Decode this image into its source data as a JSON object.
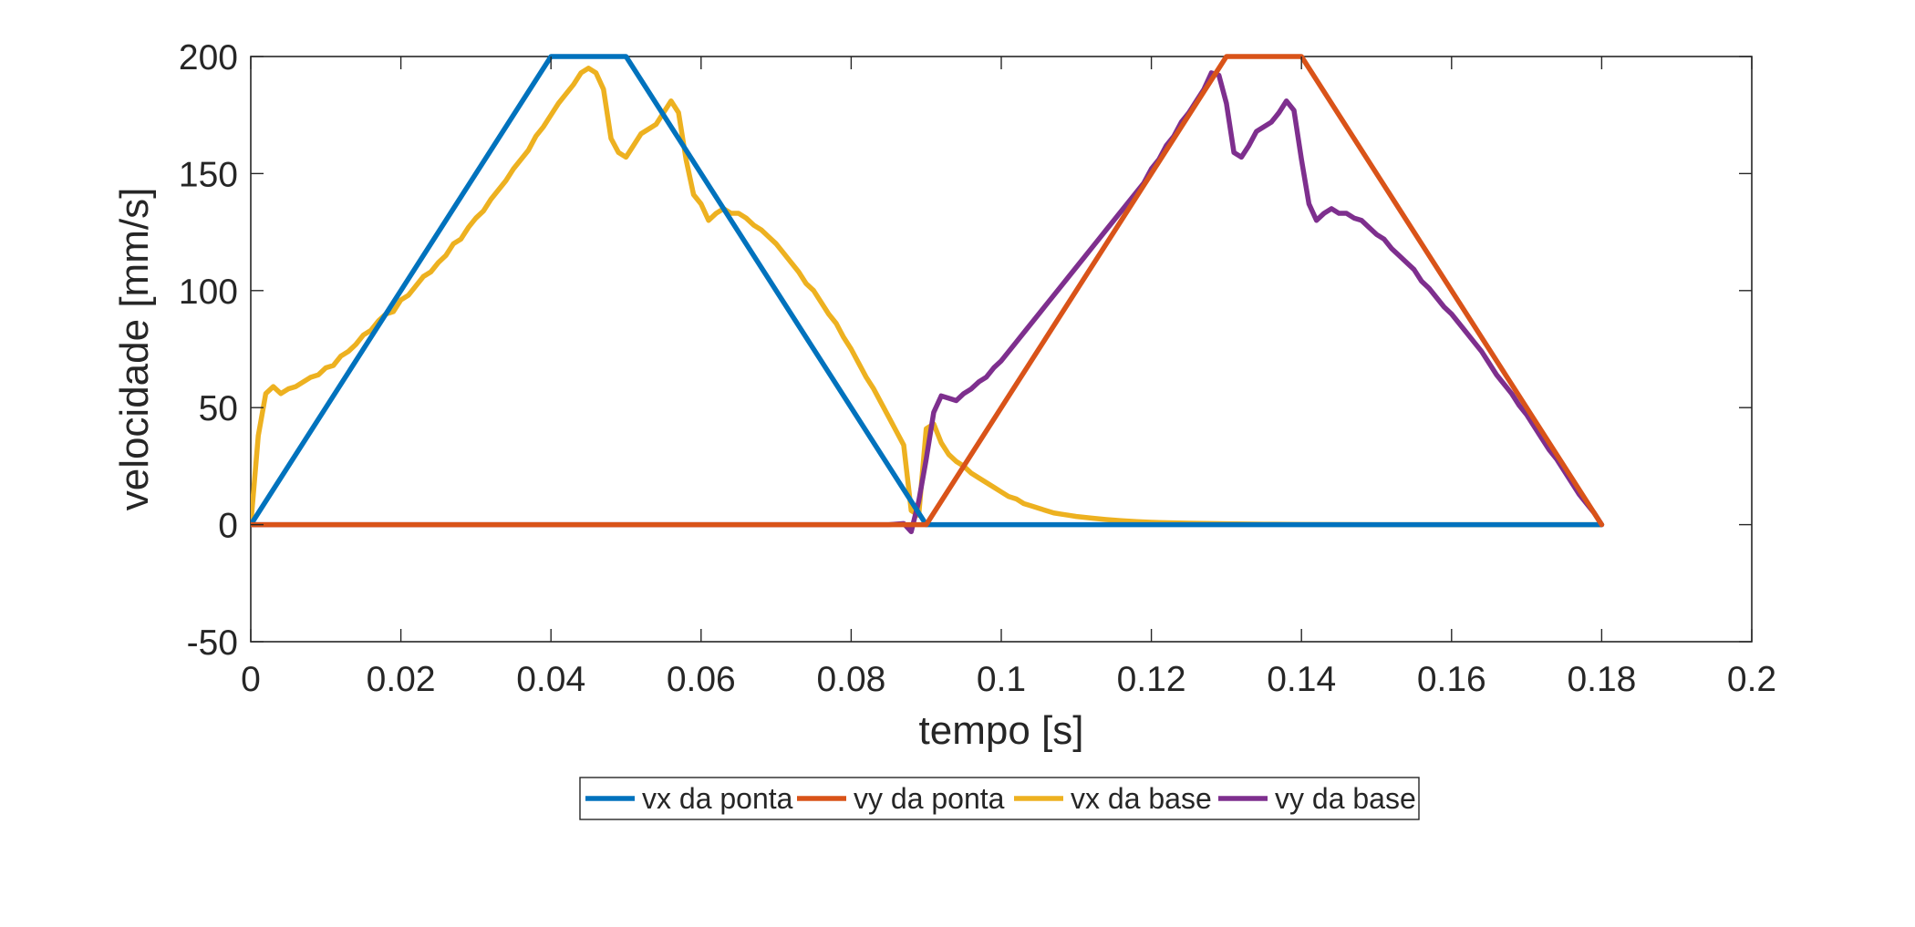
{
  "chart_data": {
    "type": "line",
    "title": "",
    "xlabel": "tempo [s]",
    "ylabel": "velocidade [mm/s]",
    "xlim": [
      0,
      0.2
    ],
    "ylim": [
      -50,
      200
    ],
    "xticks": [
      0,
      0.02,
      0.04,
      0.06,
      0.08,
      0.1,
      0.12,
      0.14,
      0.16,
      0.18,
      0.2
    ],
    "xtick_labels": [
      "0",
      "0.02",
      "0.04",
      "0.06",
      "0.08",
      "0.1",
      "0.12",
      "0.14",
      "0.16",
      "0.18",
      "0.2"
    ],
    "yticks": [
      -50,
      0,
      50,
      100,
      150,
      200
    ],
    "ytick_labels": [
      "-50",
      "0",
      "50",
      "100",
      "150",
      "200"
    ],
    "grid": false,
    "legend_position": "bottom-center",
    "series": [
      {
        "name": "vx da ponta",
        "color": "#0072BD",
        "x": [
          0,
          0.04,
          0.05,
          0.09,
          0.18
        ],
        "y": [
          0,
          200,
          200,
          0,
          0
        ]
      },
      {
        "name": "vy da ponta",
        "color": "#D95319",
        "x": [
          0,
          0.09,
          0.13,
          0.14,
          0.18
        ],
        "y": [
          0,
          0,
          200,
          200,
          0
        ]
      },
      {
        "name": "vx da base",
        "color": "#EDB120",
        "x": [
          0,
          0.001,
          0.002,
          0.003,
          0.004,
          0.005,
          0.006,
          0.007,
          0.008,
          0.009,
          0.01,
          0.011,
          0.012,
          0.013,
          0.014,
          0.015,
          0.016,
          0.017,
          0.018,
          0.019,
          0.02,
          0.021,
          0.022,
          0.023,
          0.024,
          0.025,
          0.026,
          0.027,
          0.028,
          0.029,
          0.03,
          0.031,
          0.032,
          0.033,
          0.034,
          0.035,
          0.036,
          0.037,
          0.038,
          0.039,
          0.04,
          0.041,
          0.042,
          0.043,
          0.044,
          0.045,
          0.046,
          0.047,
          0.048,
          0.049,
          0.05,
          0.051,
          0.052,
          0.053,
          0.054,
          0.055,
          0.056,
          0.057,
          0.058,
          0.059,
          0.06,
          0.061,
          0.062,
          0.063,
          0.064,
          0.065,
          0.066,
          0.067,
          0.068,
          0.069,
          0.07,
          0.071,
          0.072,
          0.073,
          0.074,
          0.075,
          0.076,
          0.077,
          0.078,
          0.079,
          0.08,
          0.081,
          0.082,
          0.083,
          0.084,
          0.085,
          0.086,
          0.087,
          0.088,
          0.089,
          0.09,
          0.091,
          0.092,
          0.093,
          0.094,
          0.095,
          0.096,
          0.097,
          0.098,
          0.099,
          0.1,
          0.101,
          0.102,
          0.103,
          0.104,
          0.105,
          0.106,
          0.107,
          0.108,
          0.109,
          0.11,
          0.112,
          0.114,
          0.116,
          0.118,
          0.12,
          0.125,
          0.13,
          0.135,
          0.14,
          0.15,
          0.16,
          0.17,
          0.18
        ],
        "y": [
          0,
          38,
          56,
          59,
          56,
          58,
          59,
          61,
          63,
          64,
          67,
          68,
          72,
          74,
          77,
          81,
          83,
          87,
          90,
          91,
          96,
          98,
          102,
          106,
          108,
          112,
          115,
          120,
          122,
          127,
          131,
          134,
          139,
          143,
          147,
          152,
          156,
          160,
          166,
          170,
          175,
          180,
          184,
          188,
          193,
          195,
          193,
          186,
          165,
          159,
          157,
          162,
          167,
          169,
          171,
          176,
          181,
          176,
          156,
          141,
          137,
          130,
          133,
          135,
          133,
          133,
          131,
          128,
          126,
          123,
          120,
          116,
          112,
          108,
          103,
          100,
          95,
          90,
          86,
          80,
          75,
          69,
          63,
          58,
          52,
          46,
          40,
          34,
          6,
          4,
          41,
          43,
          35,
          30,
          27,
          25,
          22,
          20,
          18,
          16,
          14,
          12,
          11,
          9,
          8,
          7,
          6,
          5,
          4.5,
          4,
          3.5,
          2.8,
          2.2,
          1.7,
          1.3,
          1,
          0.6,
          0.4,
          0.2,
          0.1,
          0,
          0,
          0,
          0
        ],
        "note": ""
      },
      {
        "name": "vy da base",
        "color": "#7E2F8E",
        "x": [
          0,
          0.005,
          0.01,
          0.015,
          0.02,
          0.025,
          0.03,
          0.035,
          0.04,
          0.045,
          0.05,
          0.055,
          0.06,
          0.065,
          0.07,
          0.075,
          0.08,
          0.085,
          0.087,
          0.088,
          0.089,
          0.09,
          0.091,
          0.092,
          0.093,
          0.094,
          0.095,
          0.096,
          0.097,
          0.098,
          0.099,
          0.1,
          0.101,
          0.102,
          0.103,
          0.104,
          0.105,
          0.106,
          0.107,
          0.108,
          0.109,
          0.11,
          0.111,
          0.112,
          0.113,
          0.114,
          0.115,
          0.116,
          0.117,
          0.118,
          0.119,
          0.12,
          0.121,
          0.122,
          0.123,
          0.124,
          0.125,
          0.126,
          0.127,
          0.128,
          0.129,
          0.13,
          0.131,
          0.132,
          0.133,
          0.134,
          0.135,
          0.136,
          0.137,
          0.138,
          0.139,
          0.14,
          0.141,
          0.142,
          0.143,
          0.144,
          0.145,
          0.146,
          0.147,
          0.148,
          0.149,
          0.15,
          0.151,
          0.152,
          0.153,
          0.154,
          0.155,
          0.156,
          0.157,
          0.158,
          0.159,
          0.16,
          0.161,
          0.162,
          0.163,
          0.164,
          0.165,
          0.166,
          0.167,
          0.168,
          0.169,
          0.17,
          0.171,
          0.172,
          0.173,
          0.174,
          0.175,
          0.176,
          0.177,
          0.178,
          0.179,
          0.18
        ],
        "y": [
          0,
          0,
          0,
          0,
          0,
          0,
          0,
          0,
          0,
          0,
          0,
          0,
          0,
          0,
          0,
          0,
          0,
          0,
          0.5,
          -3,
          10,
          28,
          48,
          55,
          54,
          53,
          56,
          58,
          61,
          63,
          67,
          70,
          74,
          78,
          82,
          86,
          90,
          94,
          98,
          102,
          106,
          110,
          114,
          118,
          122,
          126,
          130,
          134,
          138,
          142,
          146,
          152,
          156,
          162,
          166,
          172,
          176,
          181,
          186,
          193,
          192,
          180,
          159,
          157,
          162,
          168,
          170,
          172,
          176,
          181,
          177,
          156,
          137,
          130,
          133,
          135,
          133,
          133,
          131,
          130,
          127,
          124,
          122,
          118,
          115,
          112,
          109,
          104,
          101,
          97,
          93,
          90,
          86,
          82,
          78,
          74,
          69,
          64,
          60,
          56,
          51,
          47,
          42,
          37,
          32,
          28,
          23,
          18,
          13,
          9,
          5,
          0
        ]
      }
    ]
  }
}
